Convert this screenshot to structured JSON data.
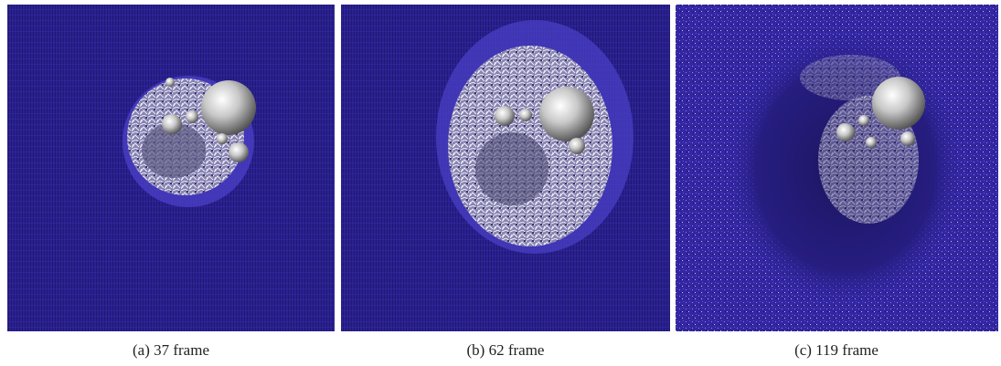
{
  "figure": {
    "panels": [
      {
        "caption": "(a) 37 frame"
      },
      {
        "caption": "(b) 62 frame"
      },
      {
        "caption": "(c) 119 frame"
      }
    ]
  }
}
